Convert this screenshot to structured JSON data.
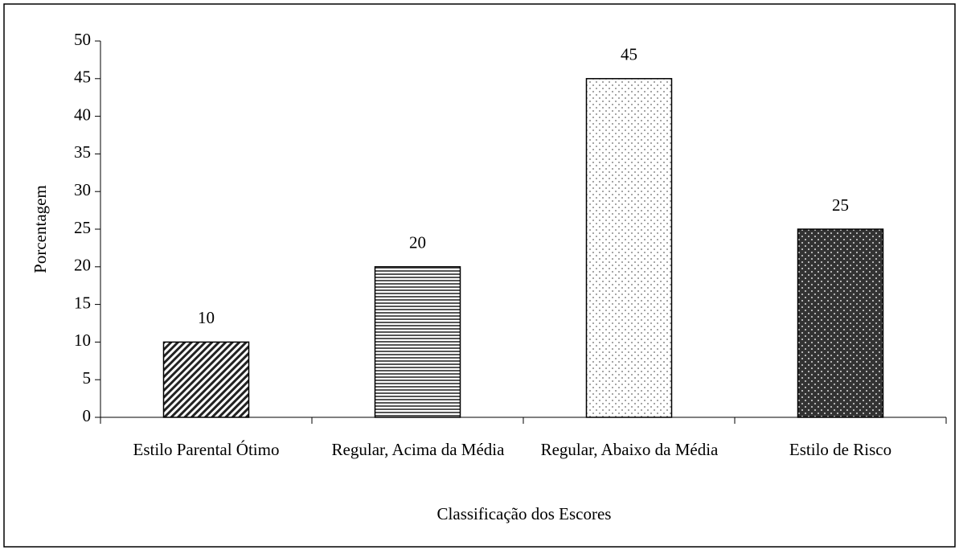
{
  "chart_data": {
    "type": "bar",
    "categories": [
      "Estilo Parental Ótimo",
      "Regular, Acima da Média",
      "Regular, Abaixo da Média",
      "Estilo de Risco"
    ],
    "values": [
      10,
      20,
      45,
      25
    ],
    "patterns": [
      "diagonal",
      "horizontal",
      "dots",
      "dark-dots"
    ],
    "ylim": [
      0,
      50
    ],
    "yticks": [
      0,
      5,
      10,
      15,
      20,
      25,
      30,
      35,
      40,
      45,
      50
    ],
    "y_label": "Porcentagem",
    "x_label": "Classificação dos Escores",
    "grid": false
  }
}
